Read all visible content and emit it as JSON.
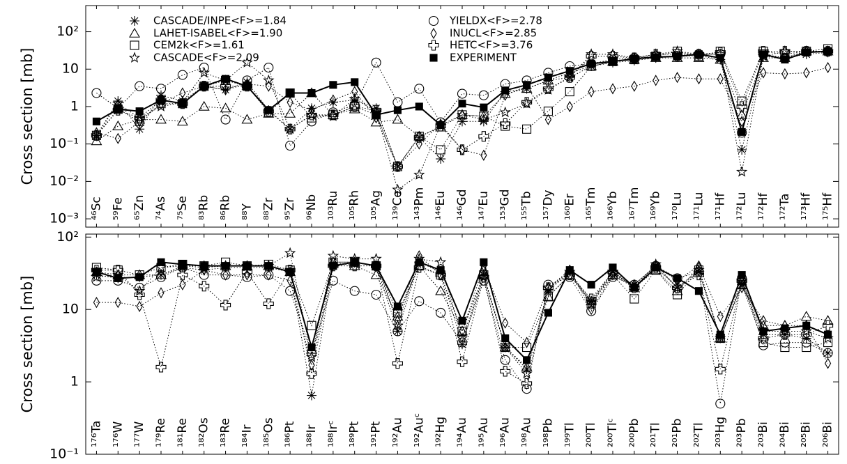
{
  "chart_data": [
    {
      "type": "line",
      "log_scale": true,
      "ylabel": "Cross section [mb]",
      "legend": "upper left",
      "ylim": [
        0.0006,
        500
      ],
      "yticks": [
        {
          "value": 0.001,
          "label": "10⁻³"
        },
        {
          "value": 0.01,
          "label": "10⁻²"
        },
        {
          "value": 0.1,
          "label": "10⁻¹"
        },
        1,
        10,
        {
          "value": 100,
          "label": "10²"
        }
      ],
      "categories": [
        "⁴⁶Sc",
        "⁵⁹Fe",
        "⁶⁵Zn",
        "⁷⁴As",
        "⁷⁵Se",
        "⁸³Rb",
        "⁸⁶Rb",
        "⁸⁸Y",
        "⁸⁸Zr",
        "⁹⁵Zr",
        "⁹⁶Nb",
        "¹⁰³Ru",
        "¹⁰⁵Rh",
        "¹⁰⁵Ag",
        "¹³⁹Ce",
        "¹⁴³Pm",
        "¹⁴⁶Eu",
        "¹⁴⁶Gd",
        "¹⁴⁷Eu",
        "¹⁵³Gd",
        "¹⁵⁵Tb",
        "¹⁵⁷Dy",
        "¹⁶⁰Er",
        "¹⁶⁵Tm",
        "¹⁶⁶Yb",
        "¹⁶⁷Tm",
        "¹⁶⁹Yb",
        "¹⁷⁰Lu",
        "¹⁷¹Lu",
        "¹⁷¹Hf",
        "¹⁷²Lu",
        "¹⁷²Hf",
        "¹⁷²Ta",
        "¹⁷³Hf",
        "¹⁷⁵Hf"
      ],
      "series": [
        {
          "name": "CASCADE/INPE<F>=1.84",
          "marker": "asterisk",
          "color": "#000000",
          "line": "dotted",
          "values": [
            0.17,
            1.4,
            0.25,
            2.0,
            1.4,
            3.5,
            2.8,
            4.5,
            0.8,
            0.25,
            0.9,
            1.3,
            1.5,
            0.9,
            0.025,
            0.15,
            0.04,
            0.4,
            0.4,
            2.5,
            3.0,
            5,
            6,
            12,
            15,
            17,
            20,
            22,
            23,
            18,
            0.07,
            22,
            20,
            25,
            28
          ]
        },
        {
          "name": "LAHET-ISABEL<F>=1.90",
          "marker": "triangle",
          "color": "#000000",
          "line": "dotted",
          "values": [
            0.12,
            0.3,
            0.45,
            0.45,
            0.4,
            1.0,
            0.9,
            0.45,
            0.65,
            0.65,
            2.3,
            0.6,
            0.85,
            0.38,
            0.45,
            0.16,
            0.28,
            0.6,
            0.55,
            2.2,
            3,
            5,
            8,
            12,
            16,
            18,
            20,
            20,
            20,
            18,
            0.6,
            20,
            20,
            30,
            30
          ]
        },
        {
          "name": "CEM2k<F>=1.61",
          "marker": "square",
          "color": "#000000",
          "line": "dotted",
          "values": [
            0.17,
            0.85,
            0.4,
            1.2,
            1.2,
            3.5,
            5,
            3.5,
            0.7,
            2.3,
            0.5,
            0.6,
            1.0,
            0.6,
            0.025,
            0.16,
            0.07,
            0.6,
            0.55,
            0.3,
            0.25,
            0.75,
            2.5,
            12,
            16,
            18,
            22,
            30,
            22,
            30,
            1.4,
            30,
            25,
            30,
            35
          ]
        },
        {
          "name": "CASCADE<F>=2.09",
          "marker": "star",
          "color": "#000000",
          "line": "dotted",
          "values": [
            0.17,
            1.2,
            0.5,
            1.0,
            1.3,
            8,
            5,
            15,
            5,
            0.25,
            0.6,
            0.55,
            1.6,
            0.75,
            0.006,
            0.015,
            0.32,
            0.6,
            0.45,
            0.7,
            1.2,
            2.8,
            6,
            25,
            25,
            20,
            25,
            30,
            25,
            25,
            0.018,
            22,
            30,
            30,
            30
          ]
        },
        {
          "name": "YIELDX<F>=2.78",
          "marker": "circle",
          "color": "#000000",
          "line": "dotted",
          "values": [
            2.3,
            0.9,
            3.5,
            3.0,
            7,
            11,
            0.45,
            5,
            11,
            0.09,
            0.4,
            0.7,
            1.1,
            15,
            1.3,
            3.0,
            0.38,
            2.2,
            2.0,
            4,
            5,
            8,
            12,
            14,
            18,
            20,
            22,
            22,
            25,
            25,
            0.2,
            25,
            20,
            30,
            30
          ]
        },
        {
          "name": "INUCL<F>=2.85",
          "marker": "diamond",
          "color": "#000000",
          "line": "dotted",
          "values": [
            0.2,
            0.14,
            0.4,
            1.2,
            2.3,
            3.5,
            2.8,
            4,
            3.5,
            1.3,
            0.8,
            1.5,
            2.5,
            0.5,
            0.025,
            0.1,
            0.34,
            0.07,
            0.05,
            2.0,
            3.5,
            0.45,
            1.0,
            2.5,
            3.0,
            3.5,
            5,
            6,
            5.5,
            5.5,
            0.4,
            8,
            7.5,
            8,
            11
          ]
        },
        {
          "name": "HETC<F>=3.76",
          "marker": "cross",
          "color": "#000000",
          "line": "dotted",
          "values": [
            0.17,
            0.8,
            0.5,
            1.5,
            1.2,
            3.5,
            3.5,
            3.5,
            0.75,
            0.25,
            0.6,
            0.6,
            1.0,
            0.8,
            0.025,
            0.15,
            0.3,
            0.07,
            0.16,
            0.35,
            1.3,
            3,
            6,
            22,
            22,
            20,
            25,
            25,
            25,
            28,
            1.0,
            30,
            30,
            30,
            30
          ]
        },
        {
          "name": "EXPERIMENT",
          "marker": "filled-square",
          "color": "#000000",
          "line": "solid",
          "values": [
            0.4,
            0.85,
            0.75,
            1.5,
            1.2,
            3.5,
            5.5,
            3.5,
            0.8,
            2.3,
            2.3,
            3.8,
            4.5,
            0.6,
            0.8,
            1.0,
            0.32,
            1.2,
            0.95,
            2.7,
            3.8,
            6,
            9,
            14,
            16,
            19,
            21,
            22,
            25,
            20,
            0.21,
            25,
            18,
            28,
            30
          ]
        }
      ]
    },
    {
      "type": "line",
      "log_scale": true,
      "ylabel": "Cross section [mb]",
      "ylim": [
        0.1,
        110
      ],
      "yticks": [
        {
          "value": 0.1,
          "label": "10⁻¹"
        },
        1,
        10,
        {
          "value": 100,
          "label": "10²"
        }
      ],
      "categories": [
        "¹⁷⁶Ta",
        "¹⁷⁶W",
        "¹⁷⁷W",
        "¹⁷⁹Re",
        "¹⁸¹Re",
        "¹⁸²Os",
        "¹⁸³Re",
        "¹⁸⁴Ir",
        "¹⁸⁵Os",
        "¹⁸⁶Pt",
        "¹⁸⁸Ir",
        "¹⁸⁸Irᶜ",
        "¹⁸⁹Pt",
        "¹⁹¹Pt",
        "¹⁹²Au",
        "¹⁹²Auᶜ",
        "¹⁹²Hg",
        "¹⁹⁴Au",
        "¹⁹⁵Au",
        "¹⁹⁶Au",
        "¹⁹⁸Au",
        "¹⁹⁸Pb",
        "¹⁹⁹Tl",
        "²⁰⁰Tl",
        "²⁰⁰Tlᶜ",
        "²⁰⁰Pb",
        "²⁰¹Tl",
        "²⁰¹Pb",
        "²⁰²Tl",
        "²⁰³Hg",
        "²⁰³Pb",
        "²⁰³Bi",
        "²⁰⁴Bi",
        "²⁰⁵Bi",
        "²⁰⁶Bi"
      ],
      "series": [
        {
          "marker": "asterisk",
          "color": "#000000",
          "line": "dotted",
          "values": [
            30,
            27,
            28,
            30,
            38,
            35,
            38,
            38,
            38,
            33,
            0.65,
            40,
            45,
            40,
            5,
            45,
            33,
            3.3,
            30,
            3,
            1.5,
            18,
            33,
            13,
            33,
            22,
            40,
            20,
            33,
            4,
            22,
            4.5,
            4.5,
            4,
            2.5
          ]
        },
        {
          "marker": "triangle",
          "color": "#000000",
          "line": "dotted",
          "values": [
            33,
            30,
            30,
            30,
            40,
            40,
            40,
            40,
            40,
            33,
            2.8,
            45,
            40,
            30,
            8,
            40,
            18,
            5,
            30,
            3,
            1.6,
            15,
            30,
            13,
            30,
            20,
            35,
            18,
            38,
            4,
            22,
            6,
            6,
            8,
            7
          ]
        },
        {
          "marker": "square",
          "color": "#000000",
          "line": "dotted",
          "values": [
            38,
            35,
            30,
            38,
            42,
            40,
            45,
            40,
            42,
            35,
            6,
            45,
            45,
            40,
            9,
            40,
            30,
            5,
            30,
            3,
            3,
            15,
            30,
            12,
            30,
            14,
            35,
            16,
            35,
            4,
            22,
            3.5,
            3,
            3,
            3.5
          ]
        },
        {
          "marker": "star",
          "color": "#000000",
          "line": "dotted",
          "values": [
            28,
            30,
            18,
            38,
            40,
            38,
            40,
            40,
            40,
            60,
            2.2,
            55,
            50,
            50,
            6,
            50,
            45,
            4,
            28,
            3,
            1.3,
            20,
            33,
            12,
            33,
            20,
            42,
            20,
            35,
            4,
            25,
            5,
            5,
            5,
            4
          ]
        },
        {
          "marker": "circle",
          "color": "#000000",
          "line": "dotted",
          "values": [
            25,
            25,
            20,
            28,
            38,
            30,
            30,
            28,
            30,
            18,
            2.5,
            25,
            18,
            16,
            5,
            13,
            9,
            3.5,
            25,
            2,
            0.8,
            22,
            28,
            9.5,
            28,
            22,
            40,
            27,
            33,
            0.5,
            27,
            3.2,
            3.5,
            3.5,
            2.5
          ]
        },
        {
          "marker": "diamond",
          "color": "#000000",
          "line": "dotted",
          "values": [
            12.5,
            12.5,
            11,
            17,
            22,
            35,
            30,
            30,
            30,
            25,
            1.7,
            45,
            45,
            40,
            7,
            55,
            30,
            5,
            40,
            6.5,
            3.5,
            20,
            35,
            10,
            30,
            22,
            40,
            25,
            40,
            8,
            20,
            7,
            6,
            6,
            1.8
          ]
        },
        {
          "marker": "cross",
          "color": "#000000",
          "line": "dotted",
          "values": [
            35,
            35,
            16,
            1.6,
            30,
            21,
            11.5,
            33,
            12,
            35,
            1.3,
            40,
            40,
            40,
            1.8,
            38,
            30,
            1.9,
            28,
            1.4,
            0.95,
            20,
            30,
            14,
            33,
            20,
            38,
            20,
            30,
            1.5,
            25,
            4,
            4.5,
            4.5,
            6
          ]
        },
        {
          "marker": "filled-square",
          "color": "#000000",
          "line": "solid",
          "values": [
            33,
            27,
            28,
            45,
            42,
            40,
            40,
            40,
            40,
            33,
            3.0,
            40,
            45,
            40,
            11,
            45,
            35,
            7,
            45,
            4,
            2.0,
            9,
            35,
            22,
            38,
            20,
            38,
            27,
            18,
            4.5,
            30,
            5,
            5.5,
            6,
            4.5
          ]
        }
      ]
    }
  ]
}
